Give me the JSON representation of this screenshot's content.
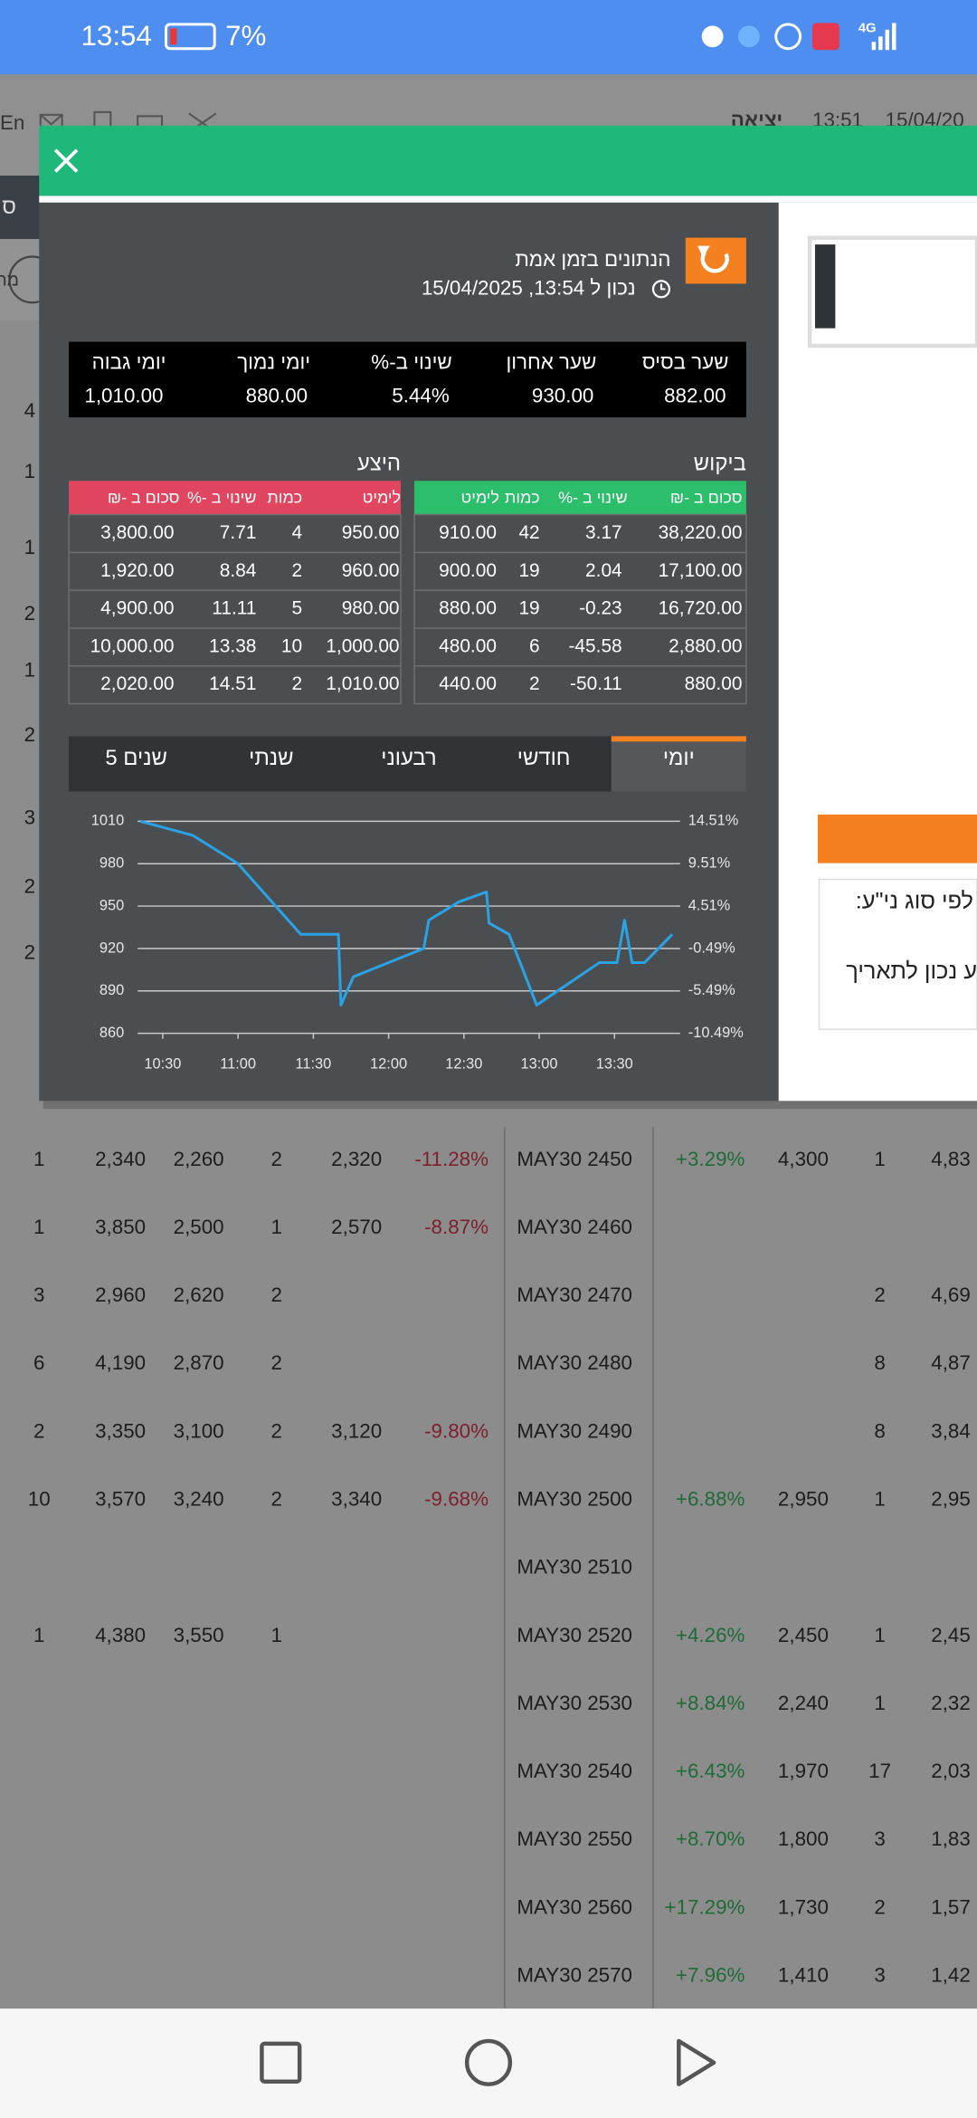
{
  "status_bar": {
    "time": "13:54",
    "battery": "7%",
    "network": "4G"
  },
  "background": {
    "header": {
      "language": "En",
      "logout": "יציאה",
      "time": "13:51",
      "date": "15/04/20"
    },
    "tab_letter": "ס",
    "avatar_text": "מח",
    "edge_digits": [
      "4",
      "1",
      "1",
      "2",
      "1",
      "2",
      "3",
      "2",
      "2"
    ],
    "rows": [
      [
        "1",
        "2,340",
        "2,260",
        "2",
        "2,320",
        "-11.28%",
        "MAY30 2450",
        "+3.29%",
        "4,300",
        "1",
        "4,83"
      ],
      [
        "1",
        "3,850",
        "2,500",
        "1",
        "2,570",
        "-8.87%",
        "MAY30 2460",
        null,
        null,
        null,
        null
      ],
      [
        "3",
        "2,960",
        "2,620",
        "2",
        null,
        null,
        "MAY30 2470",
        null,
        null,
        "2",
        "4,69"
      ],
      [
        "6",
        "4,190",
        "2,870",
        "2",
        null,
        null,
        "MAY30 2480",
        null,
        null,
        "8",
        "4,87"
      ],
      [
        "2",
        "3,350",
        "3,100",
        "2",
        "3,120",
        "-9.80%",
        "MAY30 2490",
        null,
        null,
        "8",
        "3,84"
      ],
      [
        "10",
        "3,570",
        "3,240",
        "2",
        "3,340",
        "-9.68%",
        "MAY30 2500",
        "+6.88%",
        "2,950",
        "1",
        "2,95"
      ],
      [
        null,
        null,
        null,
        null,
        null,
        null,
        "MAY30 2510",
        null,
        null,
        null,
        null
      ],
      [
        "1",
        "4,380",
        "3,550",
        "1",
        null,
        null,
        "MAY30 2520",
        "+4.26%",
        "2,450",
        "1",
        "2,45"
      ],
      [
        null,
        null,
        null,
        null,
        null,
        null,
        "MAY30 2530",
        "+8.84%",
        "2,240",
        "1",
        "2,32"
      ],
      [
        null,
        null,
        null,
        null,
        null,
        null,
        "MAY30 2540",
        "+6.43%",
        "1,970",
        "17",
        "2,03"
      ],
      [
        null,
        null,
        null,
        null,
        null,
        null,
        "MAY30 2550",
        "+8.70%",
        "1,800",
        "3",
        "1,83"
      ],
      [
        null,
        null,
        null,
        null,
        null,
        null,
        "MAY30 2560",
        "+17.29%",
        "1,730",
        "2",
        "1,57"
      ],
      [
        null,
        null,
        null,
        null,
        null,
        null,
        "MAY30 2570",
        "+7.96%",
        "1,410",
        "3",
        "1,42"
      ]
    ]
  },
  "modal": {
    "realtime_label": "הנתונים בזמן אמת",
    "as_of": "נכון ל 13:54, 15/04/2025",
    "summary": {
      "headers": [
        "שער בסיס",
        "שער אחרון",
        "שינוי ב-%",
        "יומי נמוך",
        "יומי גבוה"
      ],
      "values": [
        "882.00",
        "930.00",
        "5.44%",
        "880.00",
        "1,010.00"
      ]
    },
    "bid": {
      "title": "ביקוש",
      "headers": [
        "סכום ב -₪",
        "שינוי ב -%",
        "כמות",
        "לימיט"
      ],
      "rows": [
        [
          "38,220.00",
          "3.17",
          "42",
          "910.00"
        ],
        [
          "17,100.00",
          "2.04",
          "19",
          "900.00"
        ],
        [
          "16,720.00",
          "-0.23",
          "19",
          "880.00"
        ],
        [
          "2,880.00",
          "-45.58",
          "6",
          "480.00"
        ],
        [
          "880.00",
          "-50.11",
          "2",
          "440.00"
        ]
      ]
    },
    "ask": {
      "title": "היצע",
      "headers": [
        "לימיט",
        "כמות",
        "שינוי ב -%",
        "סכום ב -₪"
      ],
      "rows": [
        [
          "950.00",
          "4",
          "7.71",
          "3,800.00"
        ],
        [
          "960.00",
          "2",
          "8.84",
          "1,920.00"
        ],
        [
          "980.00",
          "5",
          "11.11",
          "4,900.00"
        ],
        [
          "1,000.00",
          "10",
          "13.38",
          "10,000.00"
        ],
        [
          "1,010.00",
          "2",
          "14.51",
          "2,020.00"
        ]
      ]
    },
    "tabs": [
      "יומי",
      "חודשי",
      "רבעוני",
      "שנתי",
      "5 שנים"
    ],
    "active_tab": 0,
    "chart": {
      "type": "line",
      "color": "#2aa3e6",
      "x": [
        "10:21",
        "10:42",
        "11:00",
        "11:25",
        "11:40",
        "11:41",
        "11:46",
        "12:14",
        "12:16",
        "12:28",
        "12:39",
        "12:40",
        "12:48",
        "12:59",
        "13:24",
        "13:31",
        "13:34",
        "13:37",
        "13:42",
        "13:53"
      ],
      "values": [
        1010,
        1000,
        980,
        930,
        930,
        880,
        900,
        920,
        940,
        953,
        960,
        938,
        930,
        880,
        910,
        910,
        940,
        910,
        910,
        930
      ],
      "xlim": [
        "10:20",
        "13:54"
      ],
      "xticks": [
        "10:30",
        "11:00",
        "11:30",
        "12:00",
        "12:30",
        "13:00",
        "13:30"
      ],
      "ylim": [
        860,
        1010
      ],
      "yticks": [
        1010,
        980,
        950,
        920,
        890,
        860
      ],
      "y2lim": [
        -10.49,
        14.51
      ],
      "y2ticks": [
        {
          "value": 14.51,
          "label": "14.51%"
        },
        {
          "value": 9.51,
          "label": "9.51%"
        },
        {
          "value": 4.51,
          "label": "4.51%"
        },
        {
          "value": -0.49,
          "label": "-0.49%"
        },
        {
          "value": -5.49,
          "label": "-5.49%"
        },
        {
          "value": -10.49,
          "label": "-10.49%"
        }
      ],
      "grid": true
    },
    "side_panel": {
      "line1": "לפי סוג ני\"ע:",
      "line2": "ע נכון לתאריך"
    }
  }
}
